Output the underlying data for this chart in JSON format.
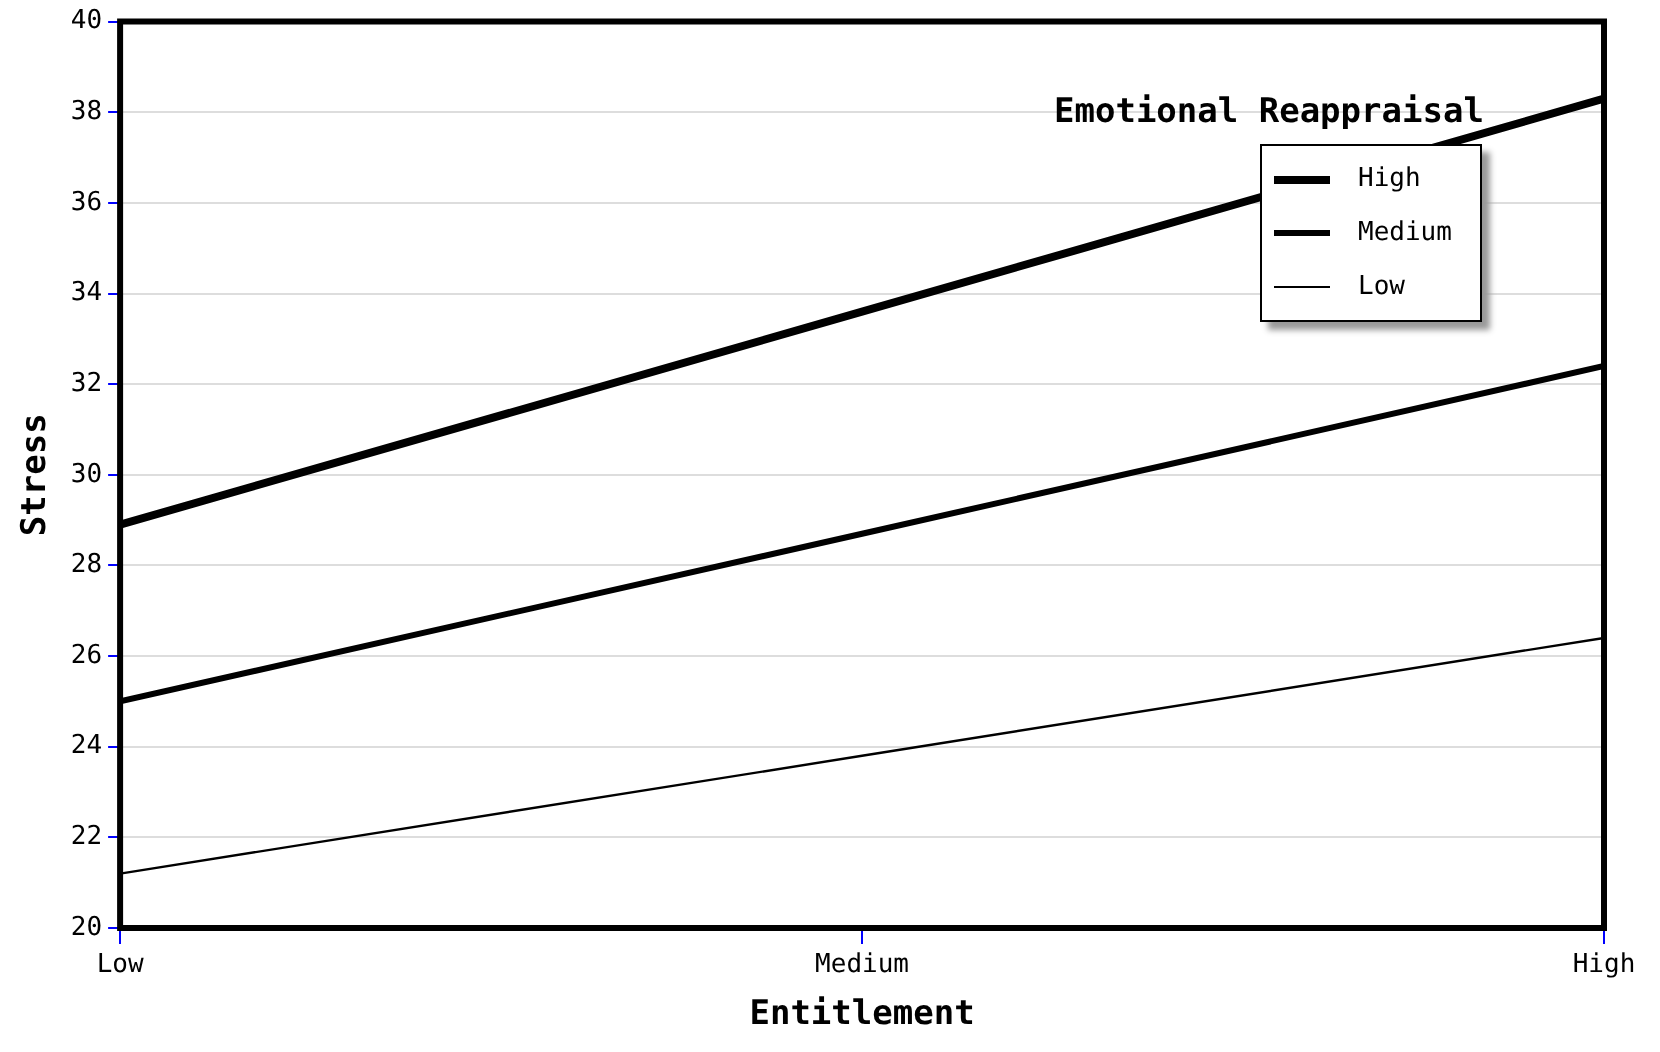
{
  "chart_data": {
    "type": "line",
    "xlabel": "Entitlement",
    "ylabel": "Stress",
    "legend_title": "Emotional Reappraisal",
    "categories": [
      "Low",
      "Medium",
      "High"
    ],
    "series": [
      {
        "name": "High",
        "color": "#000000",
        "values": [
          28.9,
          33.6,
          38.3
        ]
      },
      {
        "name": "Medium",
        "color": "#000000",
        "values": [
          25.0,
          28.7,
          32.4
        ]
      },
      {
        "name": "Low",
        "color": "#000000",
        "values": [
          21.2,
          23.8,
          26.4
        ]
      }
    ],
    "ylim": [
      20,
      40
    ],
    "yticks": [
      20,
      22,
      24,
      26,
      28,
      30,
      32,
      34,
      36,
      38,
      40
    ],
    "grid": "y",
    "legend": "top right",
    "marker": "none",
    "line_style": "solid"
  }
}
